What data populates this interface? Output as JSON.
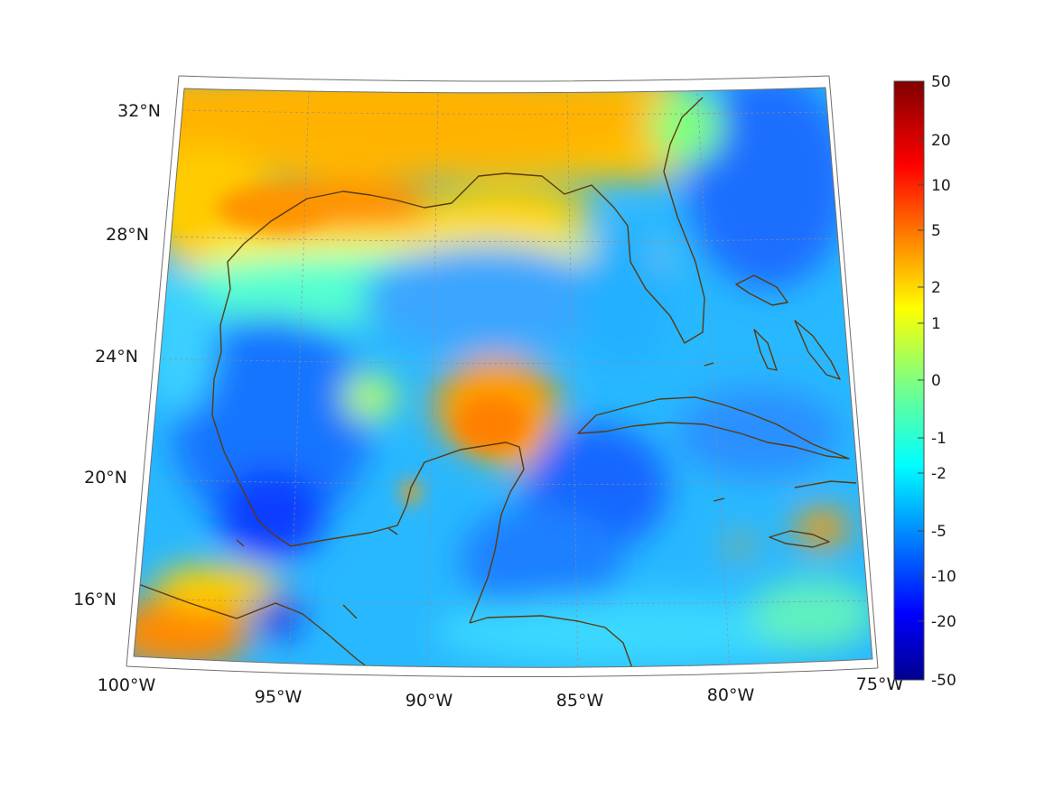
{
  "map": {
    "region": "Gulf of Mexico and Caribbean",
    "projection": "conic",
    "lon_range": [
      -100,
      -75
    ],
    "lat_range": [
      14,
      33
    ],
    "grid": true,
    "coastline_color": "#5a3a12",
    "colormap": "jet",
    "lon_labels": [
      "100°W",
      "95°W",
      "90°W",
      "85°W",
      "80°W",
      "75°W"
    ],
    "lat_labels": [
      "16°N",
      "20°N",
      "24°N",
      "28°N",
      "32°N"
    ]
  },
  "colorbar": {
    "scale": "symmetric-log",
    "position": "right",
    "ticks": [
      "50",
      "20",
      "10",
      "5",
      "2",
      "1",
      "0",
      "-1",
      "-2",
      "-5",
      "-10",
      "-20",
      "-50"
    ]
  },
  "chart_data": {
    "type": "heatmap",
    "title": "",
    "xlabel": "",
    "ylabel": "",
    "x_ticks": [
      "100°W",
      "95°W",
      "90°W",
      "85°W",
      "80°W",
      "75°W"
    ],
    "y_ticks": [
      "16°N",
      "20°N",
      "24°N",
      "28°N",
      "32°N"
    ],
    "colorbar_ticks": [
      50,
      20,
      10,
      5,
      2,
      1,
      0,
      -1,
      -2,
      -5,
      -10,
      -20,
      -50
    ],
    "notes": "Gridded field over the Gulf of Mexico; positive values (2 to 5) near the northern Gulf coast, the southwest corner and north of the Yucatan; negative values (-2 to -10) over most of the Gulf and Caribbean, strongest (about -10 to -20) in the Bay of Campeche."
  }
}
